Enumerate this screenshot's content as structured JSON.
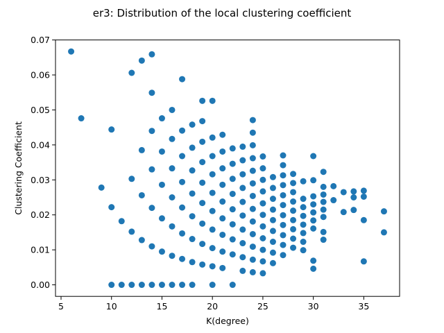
{
  "chart_data": {
    "type": "scatter",
    "title": "er3: Distribution of the local clustering coefficient",
    "xlabel": "K(degree)",
    "ylabel": "Clustering Coefficient",
    "xlim": [
      4.45,
      38.55
    ],
    "ylim": [
      -0.0033,
      0.07
    ],
    "xticks": [
      5,
      10,
      15,
      20,
      25,
      30,
      35
    ],
    "yticks": [
      0.0,
      0.01,
      0.02,
      0.03,
      0.04,
      0.05,
      0.06,
      0.07
    ],
    "ytick_labels": [
      "0.00",
      "0.01",
      "0.02",
      "0.03",
      "0.04",
      "0.05",
      "0.06",
      "0.07"
    ],
    "grid": false,
    "marker_color": "#1f77b4",
    "points": [
      [
        6,
        0.0667
      ],
      [
        7,
        0.0476
      ],
      [
        9,
        0.0278
      ],
      [
        10,
        0.0444
      ],
      [
        10,
        0.0222
      ],
      [
        10,
        0.0
      ],
      [
        11,
        0.0182
      ],
      [
        11,
        0.0
      ],
      [
        12,
        0.0606
      ],
      [
        12,
        0.0303
      ],
      [
        12,
        0.0152
      ],
      [
        12,
        0.0
      ],
      [
        13,
        0.0641
      ],
      [
        13,
        0.0385
      ],
      [
        13,
        0.0256
      ],
      [
        13,
        0.0128
      ],
      [
        13,
        0.0
      ],
      [
        14,
        0.0659
      ],
      [
        14,
        0.0549
      ],
      [
        14,
        0.044
      ],
      [
        14,
        0.033
      ],
      [
        14,
        0.022
      ],
      [
        14,
        0.011
      ],
      [
        14,
        0.0
      ],
      [
        15,
        0.0476
      ],
      [
        15,
        0.0381
      ],
      [
        15,
        0.0286
      ],
      [
        15,
        0.019
      ],
      [
        15,
        0.0095
      ],
      [
        15,
        0.0
      ],
      [
        16,
        0.05
      ],
      [
        16,
        0.0417
      ],
      [
        16,
        0.0333
      ],
      [
        16,
        0.025
      ],
      [
        16,
        0.0167
      ],
      [
        16,
        0.0083
      ],
      [
        16,
        0.0
      ],
      [
        17,
        0.0588
      ],
      [
        17,
        0.0441
      ],
      [
        17,
        0.0368
      ],
      [
        17,
        0.0294
      ],
      [
        17,
        0.0221
      ],
      [
        17,
        0.0147
      ],
      [
        17,
        0.0074
      ],
      [
        17,
        0.0
      ],
      [
        18,
        0.0458
      ],
      [
        18,
        0.0392
      ],
      [
        18,
        0.0327
      ],
      [
        18,
        0.0261
      ],
      [
        18,
        0.0196
      ],
      [
        18,
        0.0131
      ],
      [
        18,
        0.0065
      ],
      [
        18,
        0.0
      ],
      [
        19,
        0.0526
      ],
      [
        19,
        0.0468
      ],
      [
        19,
        0.0409
      ],
      [
        19,
        0.0351
      ],
      [
        19,
        0.0292
      ],
      [
        19,
        0.0234
      ],
      [
        19,
        0.0175
      ],
      [
        19,
        0.0117
      ],
      [
        19,
        0.0058
      ],
      [
        20,
        0.0526
      ],
      [
        20,
        0.0421
      ],
      [
        20,
        0.0368
      ],
      [
        20,
        0.0316
      ],
      [
        20,
        0.0263
      ],
      [
        20,
        0.0211
      ],
      [
        20,
        0.0158
      ],
      [
        20,
        0.0105
      ],
      [
        20,
        0.0053
      ],
      [
        20,
        0.0
      ],
      [
        21,
        0.0429
      ],
      [
        21,
        0.0381
      ],
      [
        21,
        0.0333
      ],
      [
        21,
        0.0286
      ],
      [
        21,
        0.0238
      ],
      [
        21,
        0.019
      ],
      [
        21,
        0.0143
      ],
      [
        21,
        0.0095
      ],
      [
        21,
        0.0048
      ],
      [
        22,
        0.039
      ],
      [
        22,
        0.0346
      ],
      [
        22,
        0.0303
      ],
      [
        22,
        0.026
      ],
      [
        22,
        0.0216
      ],
      [
        22,
        0.0173
      ],
      [
        22,
        0.013
      ],
      [
        22,
        0.0087
      ],
      [
        22,
        0.0
      ],
      [
        23,
        0.0395
      ],
      [
        23,
        0.0356
      ],
      [
        23,
        0.0316
      ],
      [
        23,
        0.0277
      ],
      [
        23,
        0.0237
      ],
      [
        23,
        0.0198
      ],
      [
        23,
        0.0158
      ],
      [
        23,
        0.0119
      ],
      [
        23,
        0.0079
      ],
      [
        23,
        0.004
      ],
      [
        24,
        0.0471
      ],
      [
        24,
        0.0435
      ],
      [
        24,
        0.0399
      ],
      [
        24,
        0.0362
      ],
      [
        24,
        0.0326
      ],
      [
        24,
        0.029
      ],
      [
        24,
        0.0254
      ],
      [
        24,
        0.0217
      ],
      [
        24,
        0.0181
      ],
      [
        24,
        0.0145
      ],
      [
        24,
        0.0109
      ],
      [
        24,
        0.0072
      ],
      [
        24,
        0.0036
      ],
      [
        25,
        0.0367
      ],
      [
        25,
        0.0333
      ],
      [
        25,
        0.03
      ],
      [
        25,
        0.0267
      ],
      [
        25,
        0.0233
      ],
      [
        25,
        0.02
      ],
      [
        25,
        0.0167
      ],
      [
        25,
        0.0133
      ],
      [
        25,
        0.01
      ],
      [
        25,
        0.0067
      ],
      [
        25,
        0.0033
      ],
      [
        26,
        0.0308
      ],
      [
        26,
        0.0277
      ],
      [
        26,
        0.0246
      ],
      [
        26,
        0.0215
      ],
      [
        26,
        0.0185
      ],
      [
        26,
        0.0154
      ],
      [
        26,
        0.0123
      ],
      [
        26,
        0.0092
      ],
      [
        26,
        0.0062
      ],
      [
        27,
        0.037
      ],
      [
        27,
        0.0342
      ],
      [
        27,
        0.0313
      ],
      [
        27,
        0.0285
      ],
      [
        27,
        0.0256
      ],
      [
        27,
        0.0228
      ],
      [
        27,
        0.0199
      ],
      [
        27,
        0.0171
      ],
      [
        27,
        0.0142
      ],
      [
        27,
        0.0114
      ],
      [
        27,
        0.0085
      ],
      [
        28,
        0.0317
      ],
      [
        28,
        0.0291
      ],
      [
        28,
        0.0265
      ],
      [
        28,
        0.0238
      ],
      [
        28,
        0.0212
      ],
      [
        28,
        0.0185
      ],
      [
        28,
        0.0159
      ],
      [
        28,
        0.0132
      ],
      [
        28,
        0.0106
      ],
      [
        29,
        0.0296
      ],
      [
        29,
        0.0246
      ],
      [
        29,
        0.0222
      ],
      [
        29,
        0.0197
      ],
      [
        29,
        0.0172
      ],
      [
        29,
        0.0148
      ],
      [
        29,
        0.0123
      ],
      [
        29,
        0.0099
      ],
      [
        30,
        0.0368
      ],
      [
        30,
        0.0299
      ],
      [
        30,
        0.0253
      ],
      [
        30,
        0.023
      ],
      [
        30,
        0.0207
      ],
      [
        30,
        0.0184
      ],
      [
        30,
        0.0161
      ],
      [
        30,
        0.0069
      ],
      [
        30,
        0.0046
      ],
      [
        31,
        0.0323
      ],
      [
        31,
        0.028
      ],
      [
        31,
        0.0258
      ],
      [
        31,
        0.0237
      ],
      [
        31,
        0.0215
      ],
      [
        31,
        0.0194
      ],
      [
        31,
        0.0151
      ],
      [
        31,
        0.0129
      ],
      [
        32,
        0.0282
      ],
      [
        32,
        0.0242
      ],
      [
        33,
        0.0265
      ],
      [
        33,
        0.0208
      ],
      [
        34,
        0.0267
      ],
      [
        34,
        0.025
      ],
      [
        34,
        0.0214
      ],
      [
        35,
        0.0269
      ],
      [
        35,
        0.0252
      ],
      [
        35,
        0.0185
      ],
      [
        35,
        0.0067
      ],
      [
        37,
        0.021
      ],
      [
        37,
        0.015
      ]
    ]
  }
}
